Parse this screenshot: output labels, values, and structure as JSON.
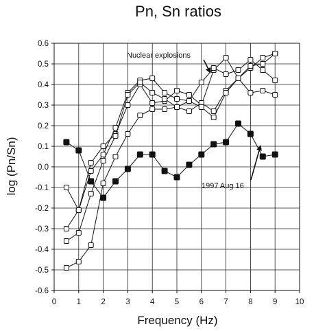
{
  "chart_data": {
    "type": "line",
    "title": "Pn, Sn ratios",
    "xlabel": "Frequency (Hz)",
    "ylabel": "log (Pn/Sn)",
    "xlim": [
      0,
      10
    ],
    "ylim": [
      -0.6,
      0.6
    ],
    "xticks": [
      0,
      1,
      2,
      3,
      4,
      5,
      6,
      7,
      8,
      9,
      10
    ],
    "yticks": [
      -0.6,
      -0.5,
      -0.4,
      -0.3,
      -0.2,
      -0.1,
      0.0,
      0.1,
      0.2,
      0.3,
      0.4,
      0.5,
      0.6
    ],
    "ytick_labels": [
      "-0.6",
      "-0.5",
      "-0.4",
      "-0.3",
      "-0.2",
      "-0.1",
      "0.0",
      "0.1",
      "0.2",
      "0.3",
      "0.4",
      "0.5",
      "0.6"
    ],
    "grid": true,
    "series": [
      {
        "name": "",
        "marker": "open-square",
        "x": [
          0.5,
          1,
          1.5,
          2,
          2.5,
          3,
          3.5,
          4,
          4.5,
          5,
          5.5,
          6,
          6.5,
          7,
          7.5,
          8,
          8.5,
          9
        ],
        "y": [
          -0.1,
          -0.21,
          0.02,
          0.1,
          0.16,
          0.3,
          0.4,
          0.31,
          0.32,
          0.37,
          0.35,
          0.3,
          0.47,
          0.53,
          0.43,
          0.48,
          0.53,
          0.55
        ]
      },
      {
        "name": "",
        "marker": "open-square",
        "x": [
          0.5,
          1,
          1.5,
          2,
          2.5,
          3,
          3.5,
          4,
          4.5,
          5,
          5.5,
          6,
          6.5,
          7,
          7.5,
          8,
          8.5,
          9
        ],
        "y": [
          -0.3,
          -0.21,
          -0.02,
          0.06,
          0.19,
          0.36,
          0.42,
          0.43,
          0.36,
          0.33,
          0.32,
          0.41,
          0.48,
          0.45,
          0.47,
          0.52,
          0.47,
          0.42
        ]
      },
      {
        "name": "",
        "marker": "open-square",
        "x": [
          0.5,
          1,
          1.5,
          2,
          2.5,
          3,
          3.5,
          4,
          4.5,
          5,
          5.5,
          6,
          6.5,
          7,
          7.5,
          8,
          8.5,
          9
        ],
        "y": [
          -0.36,
          -0.32,
          -0.13,
          0.03,
          0.15,
          0.35,
          0.41,
          0.36,
          0.33,
          0.29,
          0.27,
          0.31,
          0.27,
          0.37,
          0.43,
          0.36,
          0.37,
          0.35
        ]
      },
      {
        "name": "",
        "marker": "open-square",
        "x": [
          0.5,
          1,
          1.5,
          2,
          2.5,
          3,
          3.5,
          4,
          4.5,
          5,
          5.5,
          6,
          6.5,
          7,
          7.5,
          8,
          8.5,
          9
        ],
        "y": [
          -0.49,
          -0.46,
          -0.38,
          -0.08,
          0.05,
          0.16,
          0.25,
          0.28,
          0.28,
          0.29,
          0.32,
          0.29,
          0.24,
          0.36,
          0.43,
          0.49,
          0.5,
          0.55
        ]
      },
      {
        "name": "",
        "marker": "filled-square",
        "x": [
          0.5,
          1,
          1.5,
          2,
          2.5,
          3,
          3.5,
          4,
          4.5,
          5,
          5.5,
          6,
          6.5,
          7,
          7.5,
          8,
          8.5,
          9
        ],
        "y": [
          0.12,
          0.08,
          -0.07,
          -0.15,
          -0.07,
          -0.01,
          0.06,
          0.06,
          -0.02,
          -0.05,
          0.01,
          0.06,
          0.11,
          0.12,
          0.21,
          0.16,
          0.05,
          0.06
        ]
      }
    ],
    "annotations": [
      {
        "text": "Nuclear explosions",
        "points_to": {
          "x": 6.35,
          "y": 0.46
        }
      },
      {
        "text": "1997 Aug 16",
        "points_to": {
          "x": 8.4,
          "y": 0.1
        }
      }
    ]
  }
}
